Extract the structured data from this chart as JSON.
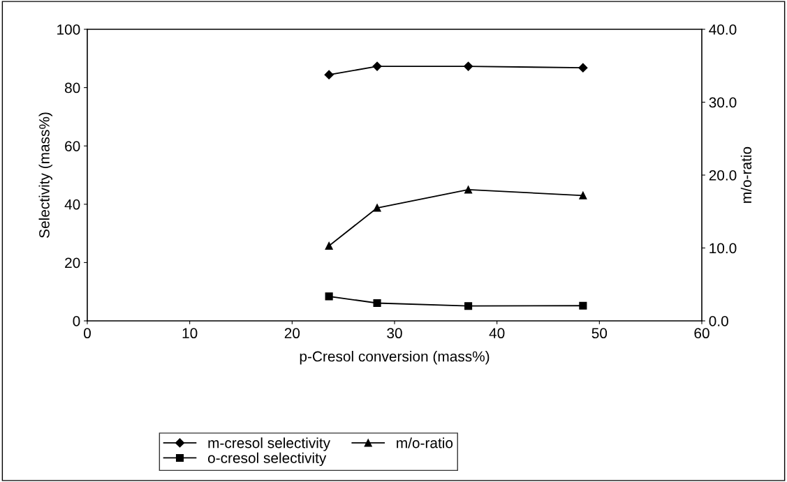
{
  "chart_data": {
    "type": "line",
    "xlabel": "p-Cresol conversion (mass%)",
    "ylabel": "Selectivity (mass%)",
    "y2label": "m/o-ratio",
    "x": [
      23.6,
      28.3,
      37.2,
      48.4
    ],
    "series": [
      {
        "name": "m-cresol selectivity",
        "color": "#000000",
        "values": [
          84.4,
          87.3,
          87.3,
          86.8
        ],
        "marker": "diamond"
      },
      {
        "name": "o-cresol selectivity",
        "color": "#000000",
        "values": [
          8.4,
          6.1,
          5.1,
          5.2
        ],
        "marker": "square"
      },
      {
        "name": "m/o-ratio",
        "color": "#000000",
        "values": [
          10.3,
          15.5,
          18.0,
          17.2
        ],
        "marker": "triangle",
        "axis": "y2"
      }
    ],
    "xlim": [
      0,
      60
    ],
    "xticks": [
      0,
      10,
      20,
      30,
      40,
      50,
      60
    ],
    "ylim": [
      0,
      100
    ],
    "yticks": [
      0,
      20,
      40,
      60,
      80,
      100
    ],
    "y2lim": [
      0,
      40
    ],
    "y2ticks": [
      {
        "value": 0,
        "label": "0.0"
      },
      {
        "value": 10,
        "label": "10.0"
      },
      {
        "value": 20,
        "label": "20.0"
      },
      {
        "value": 30,
        "label": "30.0"
      },
      {
        "value": 40,
        "label": "40.0"
      }
    ],
    "grid": false,
    "legend": "bottom",
    "line_style": "solid"
  }
}
